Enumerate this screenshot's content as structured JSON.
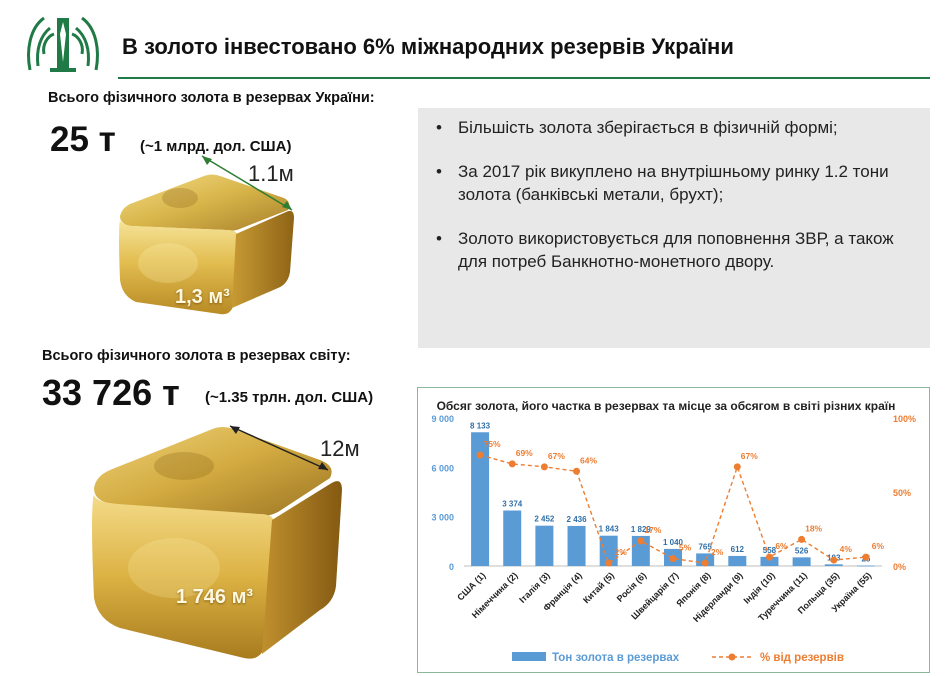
{
  "header": {
    "title": "В золото інвестовано 6% міжнародних резервів України"
  },
  "ukraine_reserves": {
    "label": "Всього фізичного золота в резервах України:",
    "amount": "25 т",
    "value_usd": "(~1 млрд. дол. США)",
    "dimension": "1.1м",
    "volume": "1,3 м³"
  },
  "world_reserves": {
    "label": "Всього фізичного золота в резервах світу:",
    "amount": "33 726 т",
    "value_usd": "(~1.35 трлн. дол. США)",
    "dimension": "12м",
    "volume": "1 746 м³"
  },
  "bullets": [
    "Більшість золота зберігається в фізичній формі;",
    "За 2017 рік викуплено на внутрішньому ринку 1.2 тони золота (банківські метали, брухт);",
    "Золото використовується для поповнення ЗВР, а також для потреб Банкнотно-монетного двору."
  ],
  "colors": {
    "accent_green": "#1f7a45",
    "bar_blue": "#5b9bd5",
    "line_orange": "#ed7d31",
    "gold": "#d4a934"
  },
  "chart_data": {
    "type": "bar",
    "title": "Обсяг золота, його частка в резервах та місце за обсягом в світі різних країн",
    "categories": [
      "США (1)",
      "Німеччина (2)",
      "Італія (3)",
      "Франція (4)",
      "Китай (5)",
      "Росія (6)",
      "Швейцарія (7)",
      "Японія (8)",
      "Нідерланди (9)",
      "Індія (10)",
      "Туреччина (11)",
      "Польща (35)",
      "Україна (55)"
    ],
    "series": [
      {
        "name": "Тон золота в резервах",
        "type": "bar",
        "axis": "left",
        "values": [
          8133,
          3374,
          2452,
          2436,
          1843,
          1829,
          1040,
          765,
          612,
          558,
          526,
          103,
          25
        ],
        "value_labels": [
          "8 133",
          "3 374",
          "2 452",
          "2 436",
          "1 843",
          "1 829",
          "1 040",
          "765",
          "612",
          "558",
          "526",
          "103",
          "25"
        ]
      },
      {
        "name": "% від резервів",
        "type": "line",
        "axis": "right",
        "values": [
          75,
          69,
          67,
          64,
          2,
          17,
          5,
          2,
          67,
          6,
          18,
          4,
          6
        ],
        "value_labels": [
          "75%",
          "69%",
          "67%",
          "64%",
          "2%",
          "17%",
          "5%",
          "2%",
          "67%",
          "6%",
          "18%",
          "4%",
          "6%"
        ]
      }
    ],
    "left_axis": {
      "ylim": [
        0,
        9000
      ],
      "ticks": [
        0,
        3000,
        6000,
        9000
      ],
      "tick_labels": [
        "0",
        "3 000",
        "6 000",
        "9 000"
      ]
    },
    "right_axis": {
      "ylim": [
        0,
        100
      ],
      "ticks": [
        0,
        50,
        100
      ],
      "tick_labels": [
        "0%",
        "50%",
        "100%"
      ]
    },
    "grid": false,
    "legend": "bottom"
  }
}
